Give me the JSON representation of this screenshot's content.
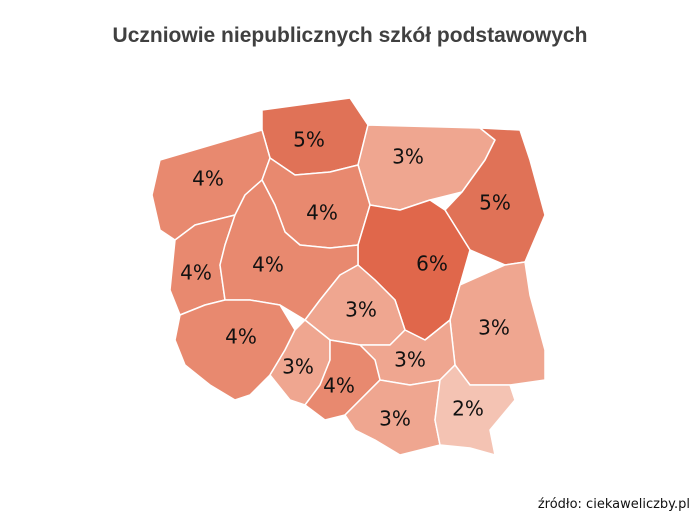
{
  "chart_data": {
    "type": "map",
    "title": "Uczniowie niepublicznych szkół podstawowych",
    "source": "źródło: ciekaweliczby.pl",
    "values": [
      5,
      3,
      5,
      4,
      4,
      6,
      4,
      4,
      3,
      3,
      4,
      3,
      3,
      4,
      3,
      2
    ],
    "value_labels": [
      "5%",
      "3%",
      "5%",
      "4%",
      "4%",
      "6%",
      "4%",
      "4%",
      "3%",
      "3%",
      "4%",
      "3%",
      "3%",
      "4%",
      "3%",
      "2%"
    ],
    "colors": [
      "#e07257",
      "#efa690",
      "#e07257",
      "#e8896f",
      "#e8896f",
      "#e0674b",
      "#e8896f",
      "#e8896f",
      "#efa690",
      "#efa690",
      "#e8896f",
      "#efa690",
      "#efa690",
      "#e8896f",
      "#efa690",
      "#f4c3b3"
    ]
  }
}
